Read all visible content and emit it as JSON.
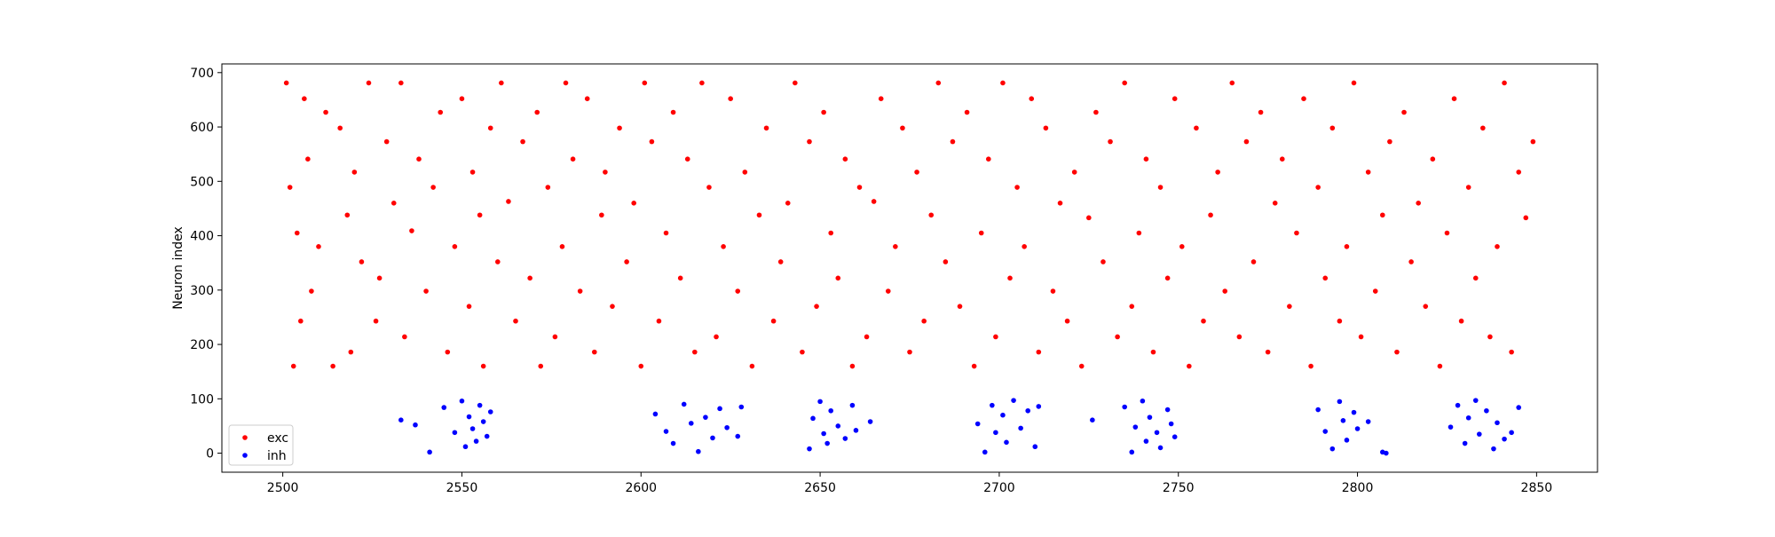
{
  "chart_data": {
    "type": "scatter",
    "title": "",
    "xlabel": "",
    "ylabel": "Neuron index",
    "xlim": [
      2483,
      2867
    ],
    "ylim": [
      -35,
      716
    ],
    "xticks": [
      2500,
      2550,
      2600,
      2650,
      2700,
      2750,
      2800,
      2850
    ],
    "yticks": [
      0,
      100,
      200,
      300,
      400,
      500,
      600,
      700
    ],
    "grid": false,
    "legend_position": "bottom-left",
    "legend": [
      "exc",
      "inh"
    ],
    "series": [
      {
        "name": "exc",
        "color": "#ff0000",
        "marker": "point",
        "points": [
          [
            2501,
            681
          ],
          [
            2502,
            489
          ],
          [
            2504,
            405
          ],
          [
            2506,
            652
          ],
          [
            2507,
            541
          ],
          [
            2508,
            298
          ],
          [
            2503,
            160
          ],
          [
            2505,
            243
          ],
          [
            2510,
            380
          ],
          [
            2512,
            627
          ],
          [
            2514,
            160
          ],
          [
            2516,
            598
          ],
          [
            2518,
            438
          ],
          [
            2519,
            186
          ],
          [
            2520,
            517
          ],
          [
            2522,
            352
          ],
          [
            2524,
            681
          ],
          [
            2526,
            243
          ],
          [
            2527,
            322
          ],
          [
            2529,
            573
          ],
          [
            2531,
            460
          ],
          [
            2533,
            681
          ],
          [
            2534,
            214
          ],
          [
            2536,
            409
          ],
          [
            2538,
            541
          ],
          [
            2540,
            298
          ],
          [
            2542,
            489
          ],
          [
            2544,
            627
          ],
          [
            2546,
            186
          ],
          [
            2548,
            380
          ],
          [
            2550,
            652
          ],
          [
            2552,
            270
          ],
          [
            2553,
            517
          ],
          [
            2555,
            438
          ],
          [
            2556,
            160
          ],
          [
            2558,
            598
          ],
          [
            2560,
            352
          ],
          [
            2561,
            681
          ],
          [
            2563,
            463
          ],
          [
            2565,
            243
          ],
          [
            2567,
            573
          ],
          [
            2569,
            322
          ],
          [
            2571,
            627
          ],
          [
            2572,
            160
          ],
          [
            2574,
            489
          ],
          [
            2576,
            214
          ],
          [
            2578,
            380
          ],
          [
            2579,
            681
          ],
          [
            2581,
            541
          ],
          [
            2583,
            298
          ],
          [
            2585,
            652
          ],
          [
            2587,
            186
          ],
          [
            2589,
            438
          ],
          [
            2590,
            517
          ],
          [
            2592,
            270
          ],
          [
            2594,
            598
          ],
          [
            2596,
            352
          ],
          [
            2598,
            460
          ],
          [
            2600,
            160
          ],
          [
            2601,
            681
          ],
          [
            2603,
            573
          ],
          [
            2605,
            243
          ],
          [
            2607,
            405
          ],
          [
            2609,
            627
          ],
          [
            2611,
            322
          ],
          [
            2613,
            541
          ],
          [
            2615,
            186
          ],
          [
            2617,
            681
          ],
          [
            2619,
            489
          ],
          [
            2621,
            214
          ],
          [
            2623,
            380
          ],
          [
            2625,
            652
          ],
          [
            2627,
            298
          ],
          [
            2629,
            517
          ],
          [
            2631,
            160
          ],
          [
            2633,
            438
          ],
          [
            2635,
            598
          ],
          [
            2637,
            243
          ],
          [
            2639,
            352
          ],
          [
            2641,
            460
          ],
          [
            2643,
            681
          ],
          [
            2645,
            186
          ],
          [
            2647,
            573
          ],
          [
            2649,
            270
          ],
          [
            2651,
            627
          ],
          [
            2653,
            405
          ],
          [
            2655,
            322
          ],
          [
            2657,
            541
          ],
          [
            2659,
            160
          ],
          [
            2661,
            489
          ],
          [
            2663,
            214
          ],
          [
            2665,
            463
          ],
          [
            2667,
            652
          ],
          [
            2669,
            298
          ],
          [
            2671,
            380
          ],
          [
            2673,
            598
          ],
          [
            2675,
            186
          ],
          [
            2677,
            517
          ],
          [
            2679,
            243
          ],
          [
            2681,
            438
          ],
          [
            2683,
            681
          ],
          [
            2685,
            352
          ],
          [
            2687,
            573
          ],
          [
            2689,
            270
          ],
          [
            2691,
            627
          ],
          [
            2693,
            160
          ],
          [
            2695,
            405
          ],
          [
            2697,
            541
          ],
          [
            2699,
            214
          ],
          [
            2701,
            681
          ],
          [
            2703,
            322
          ],
          [
            2705,
            489
          ],
          [
            2707,
            380
          ],
          [
            2709,
            652
          ],
          [
            2711,
            186
          ],
          [
            2713,
            598
          ],
          [
            2715,
            298
          ],
          [
            2717,
            460
          ],
          [
            2719,
            243
          ],
          [
            2721,
            517
          ],
          [
            2723,
            160
          ],
          [
            2725,
            433
          ],
          [
            2727,
            627
          ],
          [
            2729,
            352
          ],
          [
            2731,
            573
          ],
          [
            2733,
            214
          ],
          [
            2735,
            681
          ],
          [
            2737,
            270
          ],
          [
            2739,
            405
          ],
          [
            2741,
            541
          ],
          [
            2743,
            186
          ],
          [
            2745,
            489
          ],
          [
            2747,
            322
          ],
          [
            2749,
            652
          ],
          [
            2751,
            380
          ],
          [
            2753,
            160
          ],
          [
            2755,
            598
          ],
          [
            2757,
            243
          ],
          [
            2759,
            438
          ],
          [
            2761,
            517
          ],
          [
            2763,
            298
          ],
          [
            2765,
            681
          ],
          [
            2767,
            214
          ],
          [
            2769,
            573
          ],
          [
            2771,
            352
          ],
          [
            2773,
            627
          ],
          [
            2775,
            186
          ],
          [
            2777,
            460
          ],
          [
            2779,
            541
          ],
          [
            2781,
            270
          ],
          [
            2783,
            405
          ],
          [
            2785,
            652
          ],
          [
            2787,
            160
          ],
          [
            2789,
            489
          ],
          [
            2791,
            322
          ],
          [
            2793,
            598
          ],
          [
            2795,
            243
          ],
          [
            2797,
            380
          ],
          [
            2799,
            681
          ],
          [
            2801,
            214
          ],
          [
            2803,
            517
          ],
          [
            2805,
            298
          ],
          [
            2807,
            438
          ],
          [
            2809,
            573
          ],
          [
            2811,
            186
          ],
          [
            2813,
            627
          ],
          [
            2815,
            352
          ],
          [
            2817,
            460
          ],
          [
            2819,
            270
          ],
          [
            2821,
            541
          ],
          [
            2823,
            160
          ],
          [
            2825,
            405
          ],
          [
            2827,
            652
          ],
          [
            2829,
            243
          ],
          [
            2831,
            489
          ],
          [
            2833,
            322
          ],
          [
            2835,
            598
          ],
          [
            2837,
            214
          ],
          [
            2839,
            380
          ],
          [
            2841,
            681
          ],
          [
            2843,
            186
          ],
          [
            2845,
            517
          ],
          [
            2847,
            433
          ],
          [
            2849,
            573
          ]
        ]
      },
      {
        "name": "inh",
        "color": "#0000ff",
        "marker": "point",
        "points": [
          [
            2533,
            61
          ],
          [
            2537,
            52
          ],
          [
            2541,
            2
          ],
          [
            2545,
            84
          ],
          [
            2548,
            38
          ],
          [
            2550,
            96
          ],
          [
            2551,
            12
          ],
          [
            2552,
            67
          ],
          [
            2553,
            45
          ],
          [
            2554,
            22
          ],
          [
            2555,
            88
          ],
          [
            2556,
            58
          ],
          [
            2557,
            31
          ],
          [
            2558,
            76
          ],
          [
            2604,
            72
          ],
          [
            2607,
            40
          ],
          [
            2609,
            18
          ],
          [
            2612,
            90
          ],
          [
            2614,
            55
          ],
          [
            2616,
            3
          ],
          [
            2618,
            66
          ],
          [
            2620,
            28
          ],
          [
            2622,
            82
          ],
          [
            2624,
            47
          ],
          [
            2627,
            31
          ],
          [
            2628,
            85
          ],
          [
            2647,
            8
          ],
          [
            2648,
            64
          ],
          [
            2650,
            95
          ],
          [
            2651,
            36
          ],
          [
            2652,
            18
          ],
          [
            2653,
            78
          ],
          [
            2655,
            50
          ],
          [
            2657,
            27
          ],
          [
            2659,
            88
          ],
          [
            2660,
            42
          ],
          [
            2664,
            58
          ],
          [
            2694,
            54
          ],
          [
            2696,
            2
          ],
          [
            2698,
            88
          ],
          [
            2699,
            38
          ],
          [
            2701,
            70
          ],
          [
            2702,
            20
          ],
          [
            2704,
            97
          ],
          [
            2706,
            46
          ],
          [
            2708,
            78
          ],
          [
            2710,
            12
          ],
          [
            2711,
            86
          ],
          [
            2726,
            61
          ],
          [
            2735,
            85
          ],
          [
            2737,
            2
          ],
          [
            2738,
            48
          ],
          [
            2740,
            96
          ],
          [
            2741,
            22
          ],
          [
            2742,
            66
          ],
          [
            2744,
            38
          ],
          [
            2745,
            10
          ],
          [
            2747,
            80
          ],
          [
            2748,
            54
          ],
          [
            2749,
            30
          ],
          [
            2789,
            80
          ],
          [
            2791,
            40
          ],
          [
            2793,
            8
          ],
          [
            2795,
            95
          ],
          [
            2796,
            60
          ],
          [
            2797,
            24
          ],
          [
            2799,
            75
          ],
          [
            2800,
            45
          ],
          [
            2803,
            58
          ],
          [
            2807,
            2
          ],
          [
            2808,
            0
          ],
          [
            2826,
            48
          ],
          [
            2828,
            88
          ],
          [
            2830,
            18
          ],
          [
            2831,
            65
          ],
          [
            2833,
            97
          ],
          [
            2834,
            35
          ],
          [
            2836,
            78
          ],
          [
            2838,
            8
          ],
          [
            2839,
            56
          ],
          [
            2841,
            26
          ],
          [
            2843,
            38
          ],
          [
            2845,
            84
          ]
        ]
      }
    ]
  }
}
